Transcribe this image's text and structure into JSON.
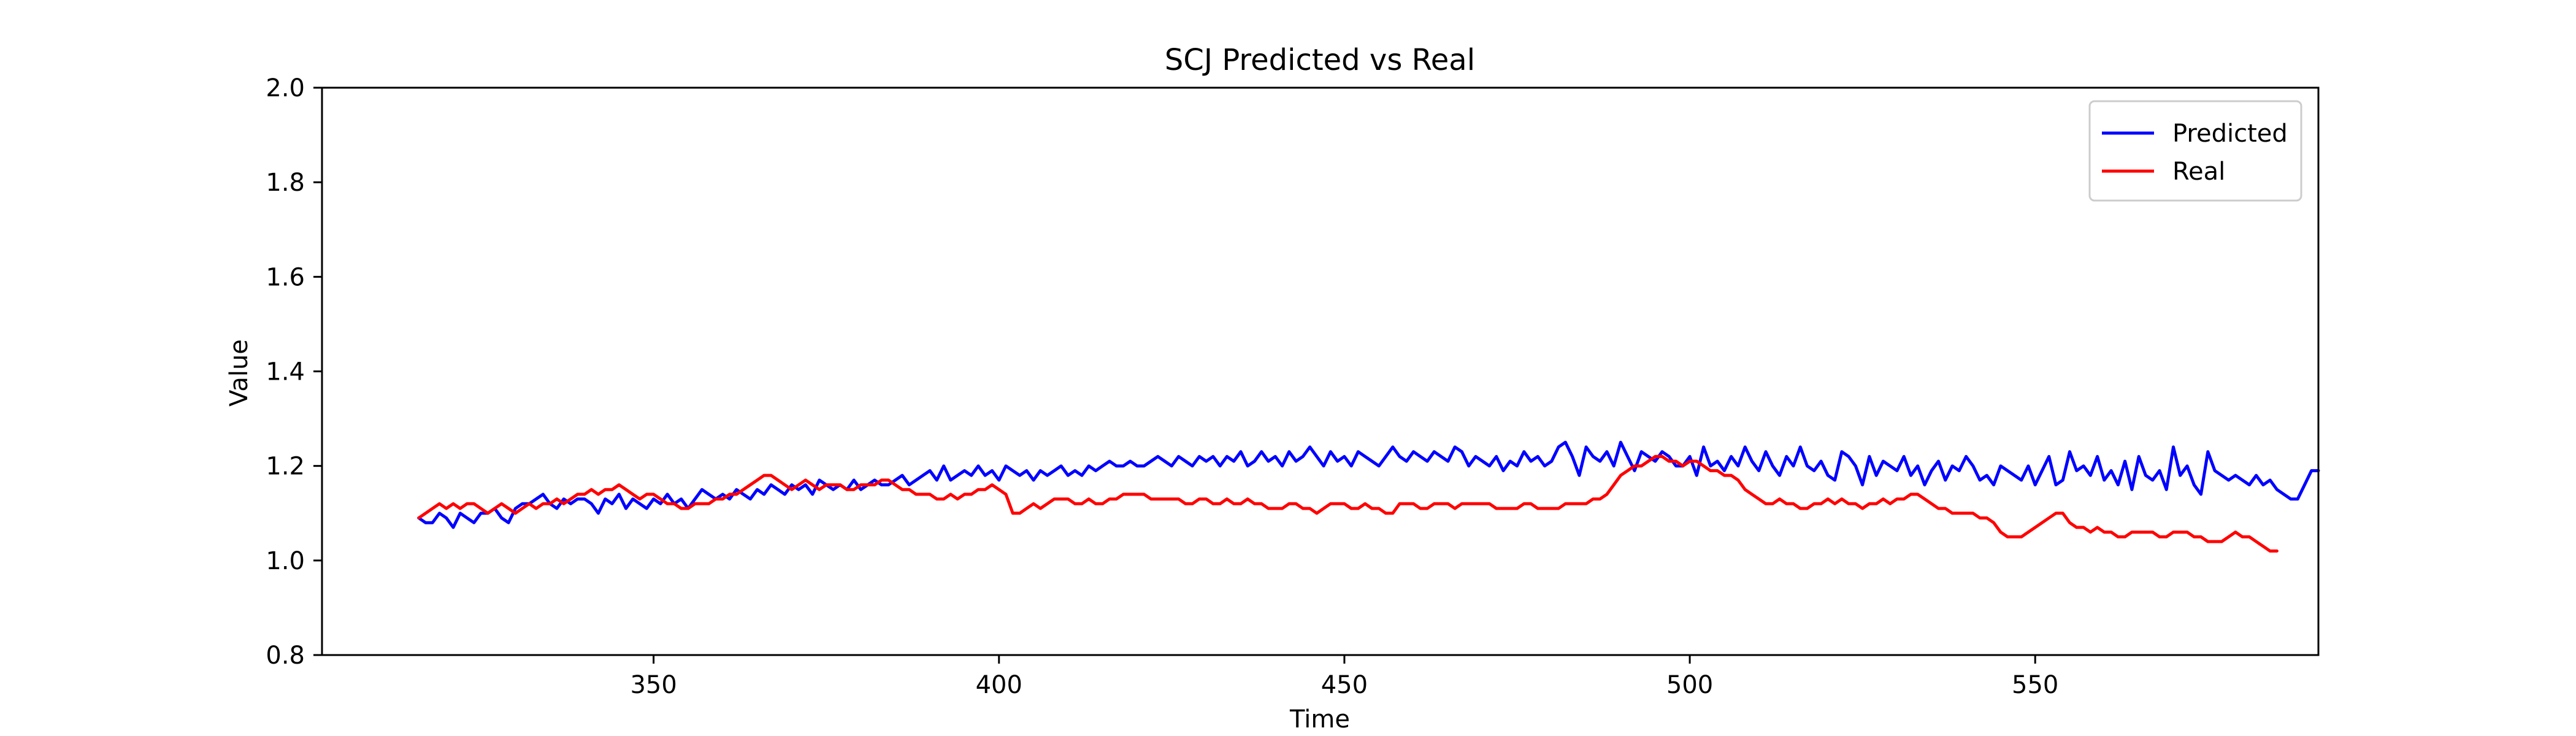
{
  "chart_data": {
    "type": "line",
    "title": "SCJ Predicted vs Real",
    "xlabel": "Time",
    "ylabel": "Value",
    "xlim": [
      302,
      591
    ],
    "ylim": [
      0.8,
      2.0
    ],
    "xticks": [
      350,
      400,
      450,
      500,
      550
    ],
    "xtick_labels": [
      "350",
      "400",
      "450",
      "500",
      "550"
    ],
    "yticks": [
      0.8,
      1.0,
      1.2,
      1.4,
      1.6,
      1.8,
      2.0
    ],
    "ytick_labels": [
      "0.8",
      "1.0",
      "1.2",
      "1.4",
      "1.6",
      "1.8",
      "2.0"
    ],
    "grid": false,
    "legend_position": "upper right",
    "series": [
      {
        "name": "Predicted",
        "color": "#0000ff",
        "x_start": 316,
        "x_step": 1,
        "values": [
          1.09,
          1.08,
          1.08,
          1.1,
          1.09,
          1.07,
          1.1,
          1.09,
          1.08,
          1.1,
          1.1,
          1.11,
          1.09,
          1.08,
          1.11,
          1.12,
          1.12,
          1.13,
          1.14,
          1.12,
          1.11,
          1.13,
          1.12,
          1.13,
          1.13,
          1.12,
          1.1,
          1.13,
          1.12,
          1.14,
          1.11,
          1.13,
          1.12,
          1.11,
          1.13,
          1.12,
          1.14,
          1.12,
          1.13,
          1.11,
          1.13,
          1.15,
          1.14,
          1.13,
          1.14,
          1.13,
          1.15,
          1.14,
          1.13,
          1.15,
          1.14,
          1.16,
          1.15,
          1.14,
          1.16,
          1.15,
          1.16,
          1.14,
          1.17,
          1.16,
          1.15,
          1.16,
          1.15,
          1.17,
          1.15,
          1.16,
          1.17,
          1.16,
          1.16,
          1.17,
          1.18,
          1.16,
          1.17,
          1.18,
          1.19,
          1.17,
          1.2,
          1.17,
          1.18,
          1.19,
          1.18,
          1.2,
          1.18,
          1.19,
          1.17,
          1.2,
          1.19,
          1.18,
          1.19,
          1.17,
          1.19,
          1.18,
          1.19,
          1.2,
          1.18,
          1.19,
          1.18,
          1.2,
          1.19,
          1.2,
          1.21,
          1.2,
          1.2,
          1.21,
          1.2,
          1.2,
          1.21,
          1.22,
          1.21,
          1.2,
          1.22,
          1.21,
          1.2,
          1.22,
          1.21,
          1.22,
          1.2,
          1.22,
          1.21,
          1.23,
          1.2,
          1.21,
          1.23,
          1.21,
          1.22,
          1.2,
          1.23,
          1.21,
          1.22,
          1.24,
          1.22,
          1.2,
          1.23,
          1.21,
          1.22,
          1.2,
          1.23,
          1.22,
          1.21,
          1.2,
          1.22,
          1.24,
          1.22,
          1.21,
          1.23,
          1.22,
          1.21,
          1.23,
          1.22,
          1.21,
          1.24,
          1.23,
          1.2,
          1.22,
          1.21,
          1.2,
          1.22,
          1.19,
          1.21,
          1.2,
          1.23,
          1.21,
          1.22,
          1.2,
          1.21,
          1.24,
          1.25,
          1.22,
          1.18,
          1.24,
          1.22,
          1.21,
          1.23,
          1.2,
          1.25,
          1.22,
          1.19,
          1.23,
          1.22,
          1.21,
          1.23,
          1.22,
          1.2,
          1.2,
          1.22,
          1.18,
          1.24,
          1.2,
          1.21,
          1.19,
          1.22,
          1.2,
          1.24,
          1.21,
          1.19,
          1.23,
          1.2,
          1.18,
          1.22,
          1.2,
          1.24,
          1.2,
          1.19,
          1.21,
          1.18,
          1.17,
          1.23,
          1.22,
          1.2,
          1.16,
          1.22,
          1.18,
          1.21,
          1.2,
          1.19,
          1.22,
          1.18,
          1.2,
          1.16,
          1.19,
          1.21,
          1.17,
          1.2,
          1.19,
          1.22,
          1.2,
          1.17,
          1.18,
          1.16,
          1.2,
          1.19,
          1.18,
          1.17,
          1.2,
          1.16,
          1.19,
          1.22,
          1.16,
          1.17,
          1.23,
          1.19,
          1.2,
          1.18,
          1.22,
          1.17,
          1.19,
          1.16,
          1.21,
          1.15,
          1.22,
          1.18,
          1.17,
          1.19,
          1.15,
          1.24,
          1.18,
          1.2,
          1.16,
          1.14,
          1.23,
          1.19,
          1.18,
          1.17,
          1.18,
          1.17,
          1.16,
          1.18,
          1.16,
          1.17,
          1.15,
          1.14,
          1.13,
          1.13,
          1.16,
          1.19,
          1.19
        ]
      },
      {
        "name": "Real",
        "color": "#ff0000",
        "x_start": 316,
        "x_step": 1,
        "values": [
          1.09,
          1.1,
          1.11,
          1.12,
          1.11,
          1.12,
          1.11,
          1.12,
          1.12,
          1.11,
          1.1,
          1.11,
          1.12,
          1.11,
          1.1,
          1.11,
          1.12,
          1.11,
          1.12,
          1.12,
          1.13,
          1.12,
          1.13,
          1.14,
          1.14,
          1.15,
          1.14,
          1.15,
          1.15,
          1.16,
          1.15,
          1.14,
          1.13,
          1.14,
          1.14,
          1.13,
          1.12,
          1.12,
          1.11,
          1.11,
          1.12,
          1.12,
          1.12,
          1.13,
          1.13,
          1.14,
          1.14,
          1.15,
          1.16,
          1.17,
          1.18,
          1.18,
          1.17,
          1.16,
          1.15,
          1.16,
          1.17,
          1.16,
          1.15,
          1.16,
          1.16,
          1.16,
          1.15,
          1.15,
          1.16,
          1.16,
          1.16,
          1.17,
          1.17,
          1.16,
          1.15,
          1.15,
          1.14,
          1.14,
          1.14,
          1.13,
          1.13,
          1.14,
          1.13,
          1.14,
          1.14,
          1.15,
          1.15,
          1.16,
          1.15,
          1.14,
          1.1,
          1.1,
          1.11,
          1.12,
          1.11,
          1.12,
          1.13,
          1.13,
          1.13,
          1.12,
          1.12,
          1.13,
          1.12,
          1.12,
          1.13,
          1.13,
          1.14,
          1.14,
          1.14,
          1.14,
          1.13,
          1.13,
          1.13,
          1.13,
          1.13,
          1.12,
          1.12,
          1.13,
          1.13,
          1.12,
          1.12,
          1.13,
          1.12,
          1.12,
          1.13,
          1.12,
          1.12,
          1.11,
          1.11,
          1.11,
          1.12,
          1.12,
          1.11,
          1.11,
          1.1,
          1.11,
          1.12,
          1.12,
          1.12,
          1.11,
          1.11,
          1.12,
          1.11,
          1.11,
          1.1,
          1.1,
          1.12,
          1.12,
          1.12,
          1.11,
          1.11,
          1.12,
          1.12,
          1.12,
          1.11,
          1.12,
          1.12,
          1.12,
          1.12,
          1.12,
          1.11,
          1.11,
          1.11,
          1.11,
          1.12,
          1.12,
          1.11,
          1.11,
          1.11,
          1.11,
          1.12,
          1.12,
          1.12,
          1.12,
          1.13,
          1.13,
          1.14,
          1.16,
          1.18,
          1.19,
          1.2,
          1.2,
          1.21,
          1.22,
          1.22,
          1.21,
          1.21,
          1.2,
          1.21,
          1.21,
          1.2,
          1.19,
          1.19,
          1.18,
          1.18,
          1.17,
          1.15,
          1.14,
          1.13,
          1.12,
          1.12,
          1.13,
          1.12,
          1.12,
          1.11,
          1.11,
          1.12,
          1.12,
          1.13,
          1.12,
          1.13,
          1.12,
          1.12,
          1.11,
          1.12,
          1.12,
          1.13,
          1.12,
          1.13,
          1.13,
          1.14,
          1.14,
          1.13,
          1.12,
          1.11,
          1.11,
          1.1,
          1.1,
          1.1,
          1.1,
          1.09,
          1.09,
          1.08,
          1.06,
          1.05,
          1.05,
          1.05,
          1.06,
          1.07,
          1.08,
          1.09,
          1.1,
          1.1,
          1.08,
          1.07,
          1.07,
          1.06,
          1.07,
          1.06,
          1.06,
          1.05,
          1.05,
          1.06,
          1.06,
          1.06,
          1.06,
          1.05,
          1.05,
          1.06,
          1.06,
          1.06,
          1.05,
          1.05,
          1.04,
          1.04,
          1.04,
          1.05,
          1.06,
          1.05,
          1.05,
          1.04,
          1.03,
          1.02,
          1.02
        ]
      }
    ]
  }
}
